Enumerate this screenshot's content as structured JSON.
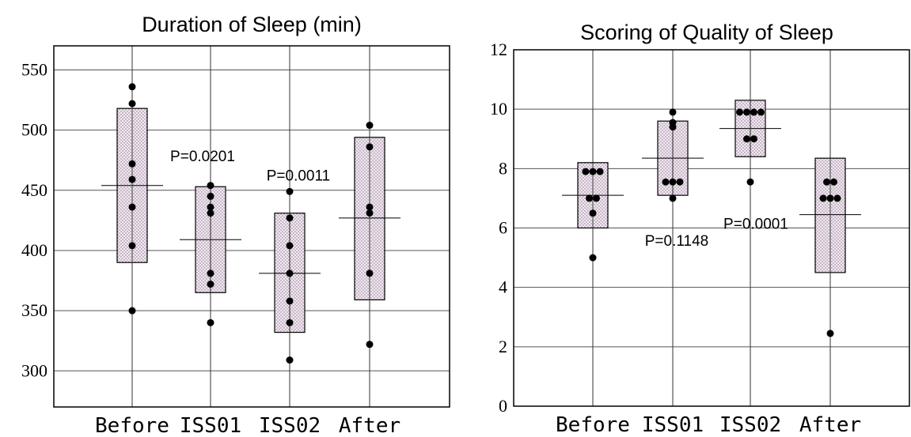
{
  "chart_data": [
    {
      "type": "box_with_points",
      "title": "Duration of Sleep (min)",
      "xlabel": "",
      "ylabel": "",
      "ylim": [
        270,
        570
      ],
      "yticks": [
        300,
        350,
        400,
        450,
        500,
        550
      ],
      "grid": true,
      "categories": [
        "Before",
        "ISS01",
        "ISS02",
        "After"
      ],
      "boxes": [
        {
          "low": 390,
          "high": 518,
          "mean": 454
        },
        {
          "low": 365,
          "high": 453,
          "mean": 409
        },
        {
          "low": 332,
          "high": 431,
          "mean": 381
        },
        {
          "low": 359,
          "high": 494,
          "mean": 427
        }
      ],
      "points": [
        [
          536,
          522,
          472,
          459,
          436,
          404,
          350
        ],
        [
          454,
          445,
          436,
          431,
          381,
          372,
          340
        ],
        [
          449,
          427,
          404,
          381,
          358,
          340,
          309
        ],
        [
          504,
          486,
          436,
          431,
          381,
          322
        ]
      ],
      "annotations": [
        {
          "text": "P=0.0201",
          "category": "ISS01",
          "y": 474
        },
        {
          "text": "P=0.0011",
          "category": "ISS02",
          "y": 458
        }
      ]
    },
    {
      "type": "box_with_points",
      "title": "Scoring of Quality of Sleep",
      "xlabel": "",
      "ylabel": "",
      "ylim": [
        0,
        12
      ],
      "yticks": [
        0,
        2,
        4,
        6,
        8,
        10,
        12
      ],
      "grid": true,
      "categories": [
        "Before",
        "ISS01",
        "ISS02",
        "After"
      ],
      "boxes": [
        {
          "low": 6.0,
          "high": 8.2,
          "mean": 7.1
        },
        {
          "low": 7.1,
          "high": 9.6,
          "mean": 8.35
        },
        {
          "low": 8.4,
          "high": 10.3,
          "mean": 9.35
        },
        {
          "low": 4.5,
          "high": 8.35,
          "mean": 6.45
        }
      ],
      "points": [
        [
          7.9,
          7.9,
          7.9,
          7.0,
          7.0,
          6.5,
          5.0
        ],
        [
          9.9,
          9.55,
          9.4,
          7.55,
          7.55,
          7.55,
          7.0
        ],
        [
          9.9,
          9.9,
          9.9,
          9.9,
          9.0,
          9.0,
          7.55
        ],
        [
          7.55,
          7.55,
          7.0,
          7.0,
          7.0,
          2.45
        ]
      ],
      "annotations": [
        {
          "text": "P=0.1148",
          "category": "ISS01",
          "y": 5.4
        },
        {
          "text": "P=0.0001",
          "category": "ISS02",
          "y": 5.98
        }
      ]
    }
  ]
}
